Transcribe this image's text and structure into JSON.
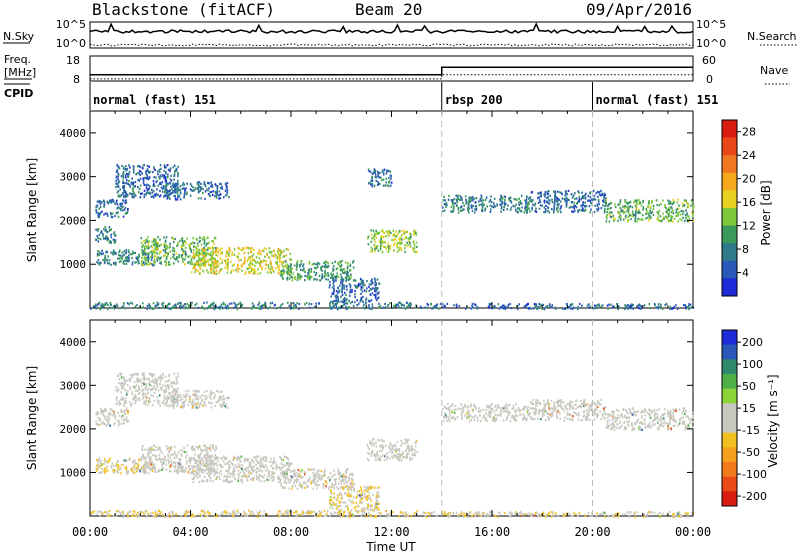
{
  "header": {
    "radar": "Blackstone (fitACF)",
    "beam": "Beam 20",
    "date": "09/Apr/2016"
  },
  "noise_panel": {
    "left_label": "N.Sky",
    "right_label": "N.Search",
    "ticks": [
      "10^5",
      "10^0"
    ]
  },
  "freq_panel": {
    "left_label_line1": "Freq.",
    "left_label_line2": "[MHz]",
    "left_ticks": [
      "18",
      "8"
    ],
    "right_label": "Nave",
    "right_ticks": [
      "60",
      "0"
    ]
  },
  "cpid": {
    "label": "CPID",
    "segments": [
      {
        "text": "normal (fast) 151",
        "start_hour": 0
      },
      {
        "text": "rbsp 200",
        "start_hour": 14
      },
      {
        "text": "normal (fast) 151",
        "start_hour": 20
      }
    ]
  },
  "time_axis": {
    "title": "Time UT",
    "ticks": [
      "00:00",
      "04:00",
      "08:00",
      "12:00",
      "16:00",
      "20:00",
      "00:00"
    ]
  },
  "power_colorbar": {
    "title": "Power [dB]",
    "ticks": [
      "4",
      "8",
      "12",
      "16",
      "20",
      "24",
      "28"
    ],
    "colors": [
      "#1f2bd6",
      "#2a58b8",
      "#2e7a8a",
      "#3a9a5a",
      "#7cc83a",
      "#e8d020",
      "#f5a81c",
      "#f07820",
      "#e84818",
      "#d81c10"
    ]
  },
  "velocity_colorbar": {
    "title": "Velocity [m s⁻¹]",
    "ticks": [
      "200",
      "100",
      "50",
      "15",
      "-15",
      "-50",
      "-100",
      "-200"
    ],
    "colors": [
      "#1f2bd6",
      "#2a58b8",
      "#2e8a6a",
      "#4fb048",
      "#8ad43a",
      "#c8c8c0",
      "#c8c8c0",
      "#f0c020",
      "#f5a01c",
      "#f07a1c",
      "#e84a18",
      "#d81c10"
    ]
  },
  "chart_data": [
    {
      "type": "heatmap",
      "title": "Power",
      "xlabel": "Time UT",
      "ylabel": "Slant Range [km]",
      "xlim_hours": [
        0,
        24
      ],
      "ylim": [
        0,
        4500
      ],
      "y_ticks": [
        1000,
        2000,
        3000,
        4000
      ],
      "colorbar_label": "Power [dB]",
      "colorbar_range": [
        0,
        30
      ],
      "blobs": [
        {
          "t0": 0.2,
          "t1": 1.0,
          "r0": 1500,
          "r1": 1900,
          "value": 8
        },
        {
          "t0": 0.2,
          "t1": 1.5,
          "r0": 2100,
          "r1": 2500,
          "value": 6
        },
        {
          "t0": 1.0,
          "t1": 3.5,
          "r0": 2550,
          "r1": 3300,
          "value": 6
        },
        {
          "t0": 3.0,
          "t1": 5.5,
          "r0": 2500,
          "r1": 2900,
          "value": 6
        },
        {
          "t0": 0.2,
          "t1": 2.5,
          "r0": 1000,
          "r1": 1350,
          "value": 8
        },
        {
          "t0": 2.0,
          "t1": 5.0,
          "r0": 1000,
          "r1": 1650,
          "value": 12
        },
        {
          "t0": 4.0,
          "t1": 8.0,
          "r0": 800,
          "r1": 1400,
          "value": 16
        },
        {
          "t0": 7.5,
          "t1": 10.5,
          "r0": 650,
          "r1": 1100,
          "value": 10
        },
        {
          "t0": 9.5,
          "t1": 11.5,
          "r0": 150,
          "r1": 700,
          "value": 6
        },
        {
          "t0": 11.0,
          "t1": 13.0,
          "r0": 1300,
          "r1": 1800,
          "value": 14
        },
        {
          "t0": 11.0,
          "t1": 12.0,
          "r0": 2800,
          "r1": 3200,
          "value": 6
        },
        {
          "t0": 14.0,
          "t1": 17.5,
          "r0": 2200,
          "r1": 2600,
          "value": 8
        },
        {
          "t0": 17.5,
          "t1": 20.5,
          "r0": 2200,
          "r1": 2700,
          "value": 6
        },
        {
          "t0": 20.5,
          "t1": 24.0,
          "r0": 2000,
          "r1": 2500,
          "value": 12
        },
        {
          "t0": 0.0,
          "t1": 13.0,
          "r0": 0,
          "r1": 150,
          "value": 8
        },
        {
          "t0": 13.0,
          "t1": 24.0,
          "r0": 0,
          "r1": 120,
          "value": 6
        }
      ]
    },
    {
      "type": "heatmap",
      "title": "Velocity",
      "xlabel": "Time UT",
      "ylabel": "Slant Range [km]",
      "xlim_hours": [
        0,
        24
      ],
      "ylim": [
        0,
        4500
      ],
      "y_ticks": [
        1000,
        2000,
        3000,
        4000
      ],
      "colorbar_label": "Velocity [m s⁻¹]",
      "colorbar_range": [
        -250,
        250
      ],
      "blobs": [
        {
          "t0": 0.2,
          "t1": 1.5,
          "r0": 2100,
          "r1": 2500,
          "value": 0
        },
        {
          "t0": 1.0,
          "t1": 3.5,
          "r0": 2550,
          "r1": 3300,
          "value": 0
        },
        {
          "t0": 3.0,
          "t1": 5.5,
          "r0": 2500,
          "r1": 2900,
          "value": 0
        },
        {
          "t0": 0.2,
          "t1": 2.5,
          "r0": 1000,
          "r1": 1350,
          "value": -40
        },
        {
          "t0": 2.0,
          "t1": 5.0,
          "r0": 1000,
          "r1": 1650,
          "value": 0
        },
        {
          "t0": 4.0,
          "t1": 8.0,
          "r0": 800,
          "r1": 1400,
          "value": 0
        },
        {
          "t0": 7.5,
          "t1": 10.5,
          "r0": 650,
          "r1": 1100,
          "value": -30
        },
        {
          "t0": 9.5,
          "t1": 11.5,
          "r0": 150,
          "r1": 700,
          "value": -40
        },
        {
          "t0": 11.0,
          "t1": 13.0,
          "r0": 1300,
          "r1": 1800,
          "value": 0
        },
        {
          "t0": 14.0,
          "t1": 17.5,
          "r0": 2200,
          "r1": 2600,
          "value": 0
        },
        {
          "t0": 17.5,
          "t1": 20.5,
          "r0": 2200,
          "r1": 2700,
          "value": 0
        },
        {
          "t0": 20.5,
          "t1": 24.0,
          "r0": 2000,
          "r1": 2500,
          "value": 0
        },
        {
          "t0": 0.0,
          "t1": 13.0,
          "r0": 0,
          "r1": 150,
          "value": -40
        },
        {
          "t0": 13.0,
          "t1": 24.0,
          "r0": 0,
          "r1": 120,
          "value": -40
        }
      ]
    }
  ],
  "frequency_series": {
    "before_14h_MHz": 10.5,
    "after_14h_MHz": 13.5
  },
  "nave_series": {
    "before_14h": 5,
    "after_14h": 15
  }
}
